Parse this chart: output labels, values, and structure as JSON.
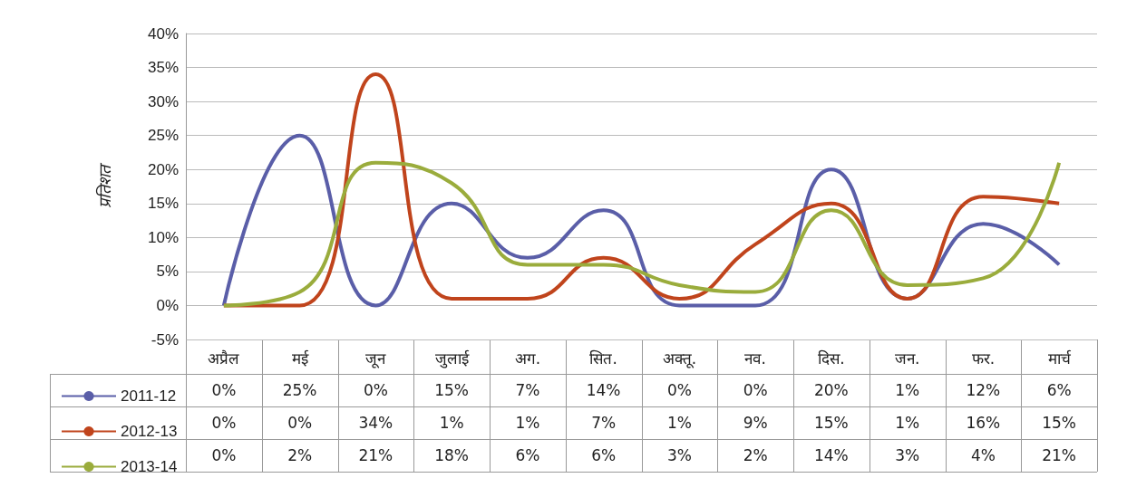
{
  "chart_data": {
    "type": "line",
    "ylabel": "प्रतिशत",
    "categories": [
      "अप्रैल",
      "मई",
      "जून",
      "जुलाई",
      "अग.",
      "सित.",
      "अक्तू.",
      "नव.",
      "दिस.",
      "जन.",
      "फर.",
      "मार्च"
    ],
    "series": [
      {
        "name": "2011-12",
        "color": "#5a5ea8",
        "values": [
          0,
          25,
          0,
          15,
          7,
          14,
          0,
          0,
          20,
          1,
          12,
          6
        ],
        "value_labels": [
          "0%",
          "25%",
          "0%",
          "15%",
          "7%",
          "14%",
          "0%",
          "0%",
          "20%",
          "1%",
          "12%",
          "6%"
        ]
      },
      {
        "name": "2012-13",
        "color": "#c0441c",
        "values": [
          0,
          0,
          34,
          1,
          1,
          7,
          1,
          9,
          15,
          1,
          16,
          15
        ],
        "value_labels": [
          "0%",
          "0%",
          "34%",
          "1%",
          "1%",
          "7%",
          "1%",
          "9%",
          "15%",
          "1%",
          "16%",
          "15%"
        ]
      },
      {
        "name": "2013-14",
        "color": "#9aac3c",
        "values": [
          0,
          2,
          21,
          18,
          6,
          6,
          3,
          2,
          14,
          3,
          4,
          21
        ],
        "value_labels": [
          "0%",
          "2%",
          "21%",
          "18%",
          "6%",
          "6%",
          "3%",
          "2%",
          "14%",
          "3%",
          "4%",
          "21%"
        ]
      }
    ],
    "ylim": [
      -5,
      40
    ],
    "yticks": [
      {
        "value": -5,
        "label": "-5%"
      },
      {
        "value": 0,
        "label": "0%"
      },
      {
        "value": 5,
        "label": "5%"
      },
      {
        "value": 10,
        "label": "10%"
      },
      {
        "value": 15,
        "label": "15%"
      },
      {
        "value": 20,
        "label": "20%"
      },
      {
        "value": 25,
        "label": "25%"
      },
      {
        "value": 30,
        "label": "30%"
      },
      {
        "value": 35,
        "label": "35%"
      },
      {
        "value": 40,
        "label": "40%"
      }
    ],
    "grid": "y",
    "legend": "bottom left",
    "marker": "none",
    "line_style": "solid"
  }
}
